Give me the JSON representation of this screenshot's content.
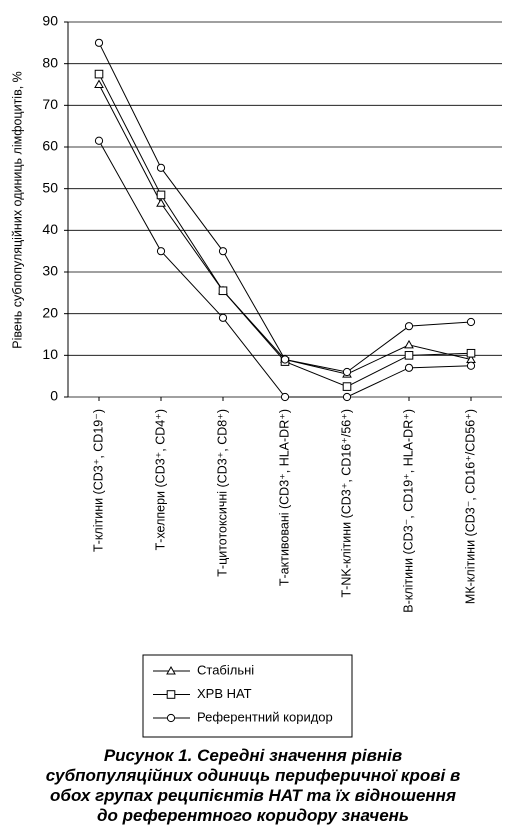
{
  "chart_data": {
    "type": "line",
    "y_label": "Рівень субпопуляційних одиниць лімфоцитів, %",
    "caption": "Рисунок 1. Середні значення рівнів субпопуляційних одиниць периферичної крові в обох групах реципієнтів НАТ та їх відношення до референтного коридору значень",
    "categories": [
      "Т-клітини (CD3⁺, CD19⁻)",
      "Т-хелпери (CD3⁺, CD4⁺)",
      "Т-цитотоксичні (CD3⁺, CD8⁺)",
      "Т-активовані (CD3⁺, HLA-DR⁺)",
      "Т-NK-клітини (CD3⁺, CD16⁺/56⁺)",
      "В-клітини (CD3⁻, CD19⁺, HLA-DR⁺)",
      "МК-клітини (CD3⁻, CD16⁺/CD56⁺)"
    ],
    "series": [
      {
        "name": "Стабільні",
        "marker": "triangle",
        "color": "#000000",
        "values": [
          75,
          46.5,
          25.5,
          9,
          5.5,
          12.5,
          9
        ]
      },
      {
        "name": "ХРВ НАТ",
        "marker": "square",
        "color": "#000000",
        "values": [
          77.5,
          48.5,
          25.5,
          8.5,
          2.5,
          10,
          10.5
        ]
      },
      {
        "name": "Референтний коридор",
        "marker": "circle",
        "color": "#000000",
        "values": [
          85,
          55,
          35,
          9,
          6,
          17,
          18
        ],
        "lower": [
          61.5,
          35,
          19,
          0,
          0,
          7,
          7.5
        ]
      }
    ],
    "ylim": [
      0,
      90
    ],
    "yticks": [
      0,
      10,
      20,
      30,
      40,
      50,
      60,
      70,
      80,
      90
    ],
    "grid": true
  }
}
